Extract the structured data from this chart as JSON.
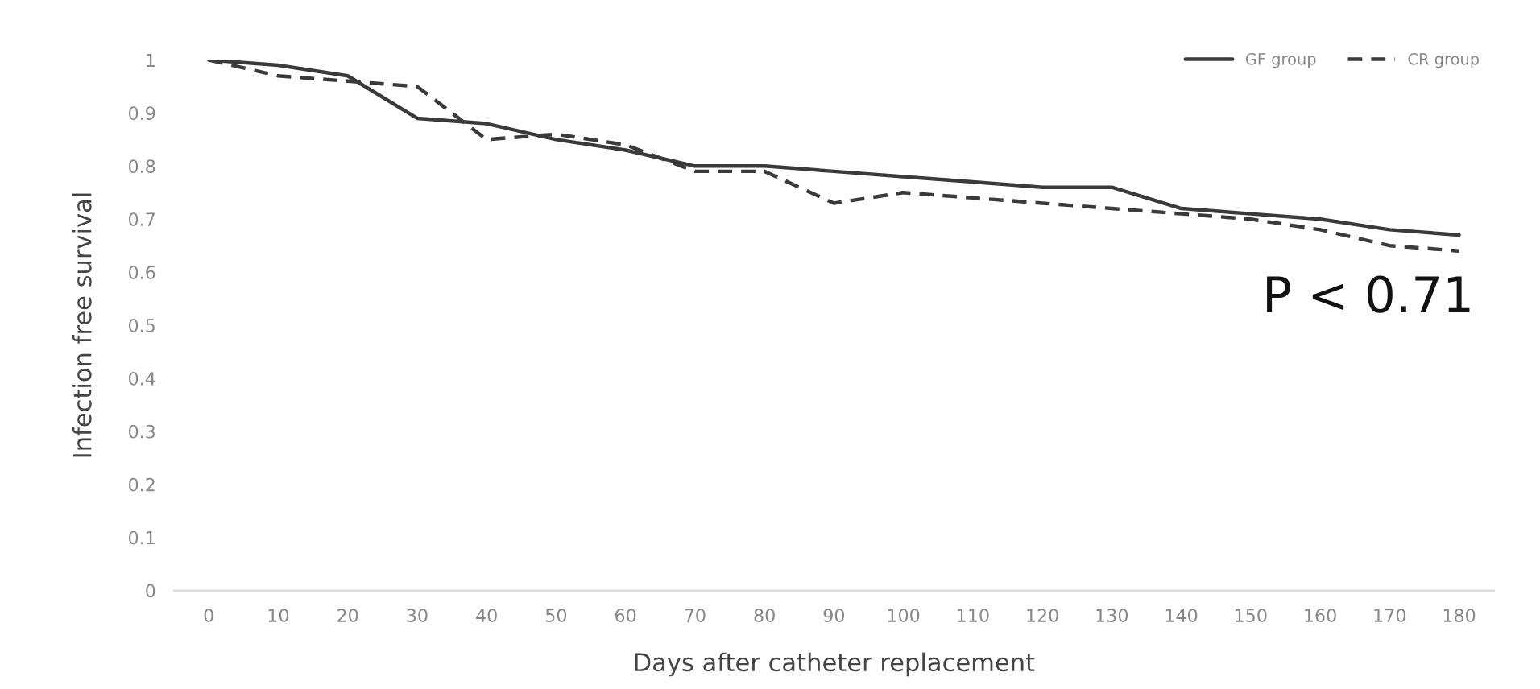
{
  "chart_data": {
    "type": "line",
    "xlabel": "Days after catheter replacement",
    "ylabel": "Infection free survival",
    "categories": [
      "0",
      "10",
      "20",
      "30",
      "40",
      "50",
      "60",
      "70",
      "80",
      "90",
      "100",
      "110",
      "120",
      "130",
      "140",
      "150",
      "160",
      "170",
      "180"
    ],
    "series": [
      {
        "name": "GF group",
        "color": "#3a3a3a",
        "line_style": "solid",
        "values": [
          1,
          0.99,
          0.97,
          0.89,
          0.88,
          0.85,
          0.83,
          0.8,
          0.8,
          0.79,
          0.78,
          0.77,
          0.76,
          0.76,
          0.72,
          0.71,
          0.7,
          0.68,
          0.67
        ]
      },
      {
        "name": "CR group",
        "color": "#3a3a3a",
        "line_style": "dashed",
        "values": [
          1,
          0.97,
          0.96,
          0.95,
          0.85,
          0.86,
          0.84,
          0.79,
          0.79,
          0.73,
          0.75,
          0.74,
          0.73,
          0.72,
          0.71,
          0.7,
          0.68,
          0.65,
          0.64
        ]
      }
    ],
    "ylim": [
      0,
      1
    ],
    "yticks": [
      0,
      0.1,
      0.2,
      0.3,
      0.4,
      0.5,
      0.6,
      0.7,
      0.8,
      0.9,
      1
    ],
    "legend": "top right",
    "grid": false,
    "marker": "none",
    "annotations": [
      "P < 0.71"
    ]
  }
}
